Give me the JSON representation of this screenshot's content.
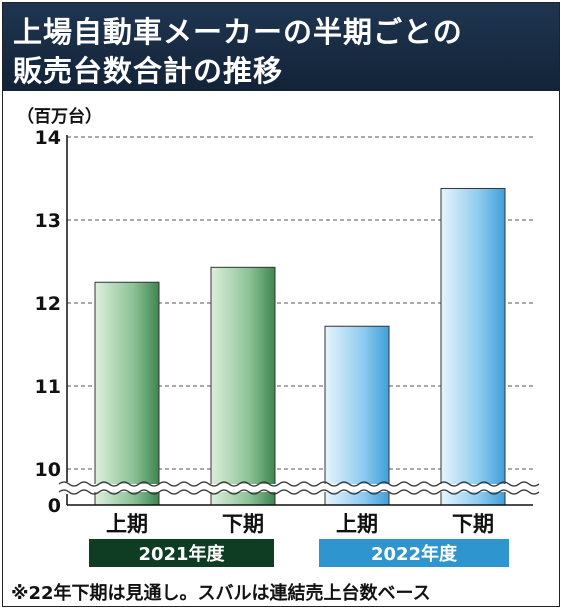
{
  "title": {
    "line1": "上場自動車メーカーの半期ごとの",
    "line2": "販売台数合計の推移"
  },
  "chart_data": {
    "type": "bar",
    "unit_label": "（百万台）",
    "y_ticks": [
      "0",
      "10",
      "11",
      "12",
      "13",
      "14"
    ],
    "ylim": [
      9.6,
      14
    ],
    "axis_break": true,
    "grid": "dashed horizontal",
    "bars": [
      {
        "label": "上期",
        "value": 12.25,
        "group": 0
      },
      {
        "label": "下期",
        "value": 12.43,
        "group": 0
      },
      {
        "label": "上期",
        "value": 11.72,
        "group": 1
      },
      {
        "label": "下期",
        "value": 13.38,
        "group": 1
      }
    ],
    "groups": [
      {
        "label": "2021年度",
        "color": "#0e3d24"
      },
      {
        "label": "2022年度",
        "color": "#2e95cf"
      }
    ],
    "colors": {
      "green_bar": "#6fae7a",
      "blue_bar": "#6fbce8",
      "title_bg": "#1a2e46"
    }
  },
  "footnote": "※22年下期は見通し。スバルは連結売上台数ベース"
}
